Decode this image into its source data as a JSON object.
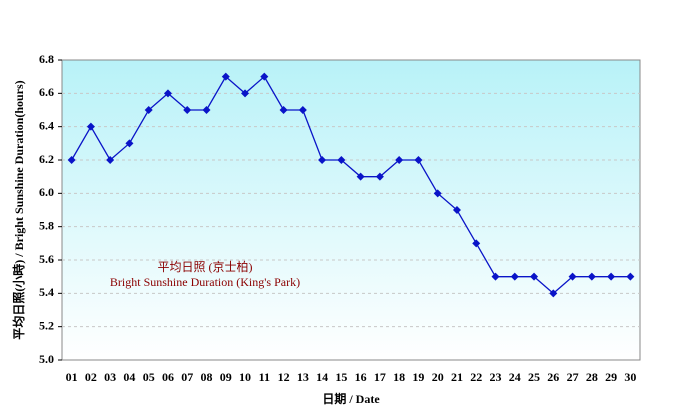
{
  "chart_data": {
    "type": "line",
    "y_label": "平均日照(小時) / Bright Sunshine Duration(hours)",
    "x_label": "日期 / Date",
    "annotations": [
      "平均日照 (京士柏)",
      "Bright Sunshine Duration (King's Park)"
    ],
    "categories": [
      "01",
      "02",
      "03",
      "04",
      "05",
      "06",
      "07",
      "08",
      "09",
      "10",
      "11",
      "12",
      "13",
      "14",
      "15",
      "16",
      "17",
      "18",
      "19",
      "20",
      "21",
      "22",
      "23",
      "24",
      "25",
      "26",
      "27",
      "28",
      "29",
      "30"
    ],
    "series": [
      {
        "color": "#0a14c8",
        "values": [
          6.2,
          6.4,
          6.2,
          6.3,
          6.5,
          6.6,
          6.5,
          6.5,
          6.7,
          6.6,
          6.7,
          6.5,
          6.5,
          6.2,
          6.2,
          6.1,
          6.1,
          6.2,
          6.2,
          6.0,
          5.9,
          5.7,
          5.5,
          5.5,
          5.5,
          5.4,
          5.5,
          5.5,
          5.5,
          5.5
        ]
      }
    ],
    "ylim": [
      5,
      6.8
    ],
    "yticks": [
      {
        "value": 5,
        "label": "5.0"
      },
      5.2,
      5.4,
      5.6,
      5.8,
      {
        "value": 6,
        "label": "6.0"
      },
      6.2,
      6.4,
      6.6,
      6.8
    ],
    "grid": true
  }
}
